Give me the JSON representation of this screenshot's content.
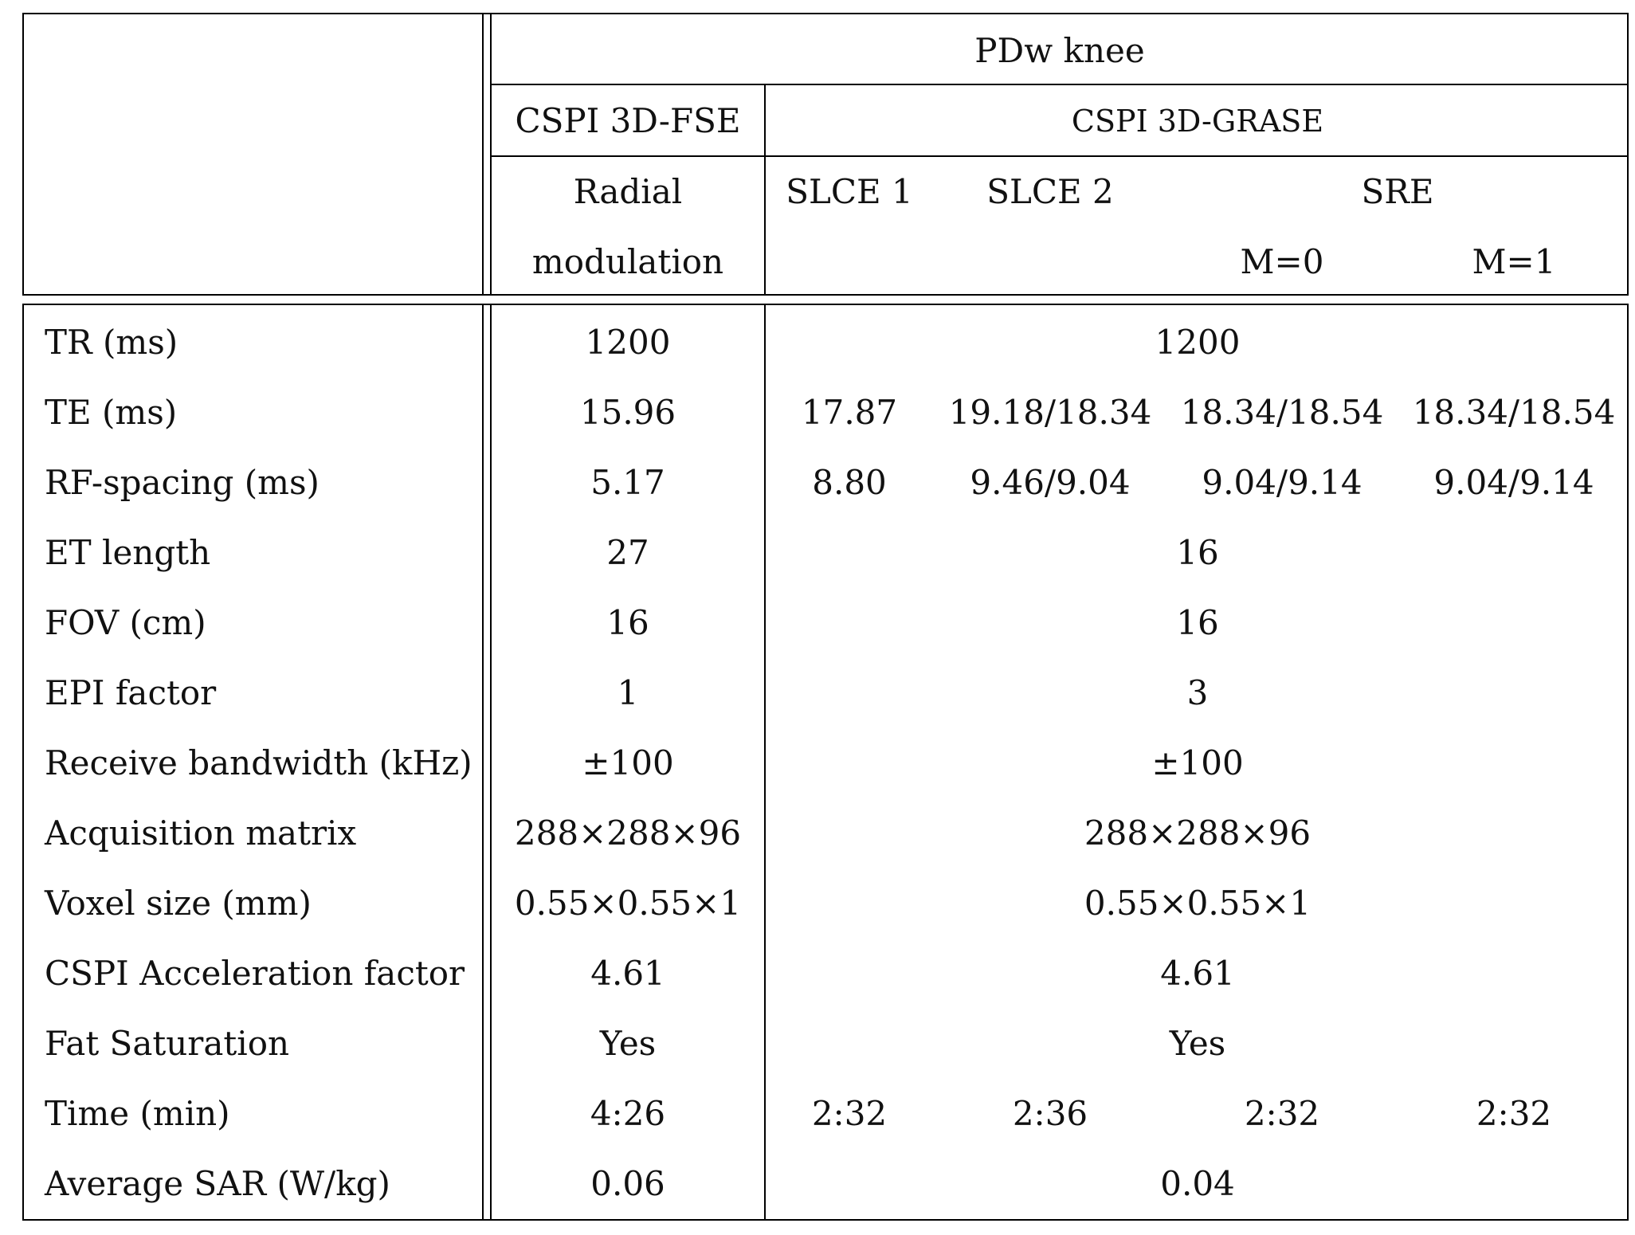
{
  "header": {
    "group": "PDw knee",
    "fse_method": "CSPI 3D-FSE",
    "grase_method": "CSPI 3D-GRASE",
    "fse_variant_line1": "Radial",
    "fse_variant_line2": "modulation",
    "slce1": "SLCE 1",
    "slce2": "SLCE 2",
    "sre": "SRE",
    "m0": "M=0",
    "m1": "M=1"
  },
  "rows": [
    {
      "label": "TR (ms)",
      "fse": "1200",
      "grase": "1200"
    },
    {
      "label": "TE (ms)",
      "fse": "15.96",
      "slce1": "17.87",
      "slce2": "19.18/18.34",
      "m0": "18.34/18.54",
      "m1": "18.34/18.54"
    },
    {
      "label": "RF-spacing (ms)",
      "fse": "5.17",
      "slce1": "8.80",
      "slce2": "9.46/9.04",
      "m0": "9.04/9.14",
      "m1": "9.04/9.14"
    },
    {
      "label": "ET length",
      "fse": "27",
      "grase": "16"
    },
    {
      "label": "FOV (cm)",
      "fse": "16",
      "grase": "16"
    },
    {
      "label": "EPI factor",
      "fse": "1",
      "grase": "3"
    },
    {
      "label": "Receive bandwidth (kHz)",
      "fse": "±100",
      "grase": "±100"
    },
    {
      "label": "Acquisition matrix",
      "fse": "288×288×96",
      "grase": "288×288×96"
    },
    {
      "label": "Voxel size (mm)",
      "fse": "0.55×0.55×1",
      "grase": "0.55×0.55×1"
    },
    {
      "label": "CSPI Acceleration factor",
      "fse": "4.61",
      "grase": "4.61"
    },
    {
      "label": "Fat Saturation",
      "fse": "Yes",
      "grase": "Yes"
    },
    {
      "label": "Time (min)",
      "fse": "4:26",
      "slce1": "2:32",
      "slce2": "2:36",
      "m0": "2:32",
      "m1": "2:32"
    },
    {
      "label": "Average SAR (W/kg)",
      "fse": "0.06",
      "grase": "0.04"
    }
  ]
}
